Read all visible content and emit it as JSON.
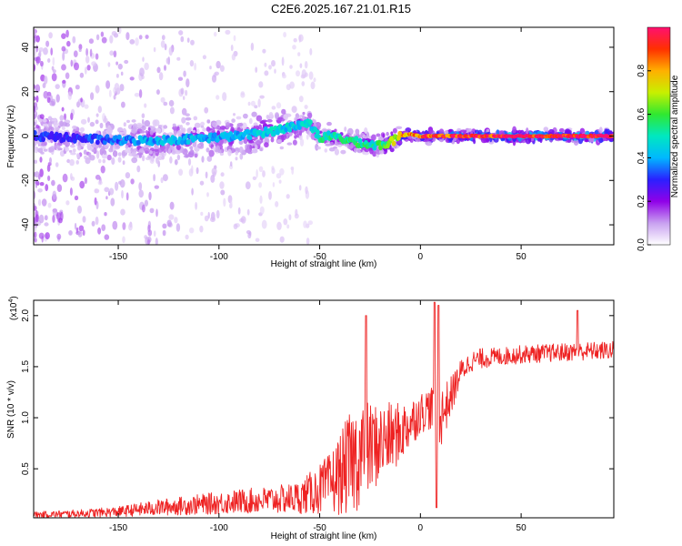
{
  "page": {
    "title": "C2E6.2025.167.21.01.R15"
  },
  "chart_data": [
    {
      "type": "heatmap",
      "id": "spectrogram",
      "xlabel": "Height of straight line (km)",
      "ylabel": "Frequency (Hz)",
      "xlim": [
        -192,
        96
      ],
      "ylim": [
        -49,
        49
      ],
      "x_ticks": [
        -150,
        -100,
        -50,
        0,
        50
      ],
      "x_tick_labels": [
        "-150",
        "-100",
        "-50",
        "0",
        "50"
      ],
      "y_ticks": [
        -40,
        -20,
        0,
        20,
        40
      ],
      "y_tick_labels": [
        "-40",
        "-20",
        "0",
        "20",
        "40"
      ],
      "ridge": {
        "x": [
          -192,
          -170,
          -150,
          -130,
          -110,
          -90,
          -75,
          -60,
          -55,
          -50,
          -45,
          -40,
          -35,
          -30,
          -25,
          -20,
          -15,
          -10,
          -5,
          0,
          5,
          10,
          20,
          30,
          40,
          50,
          60,
          70,
          80,
          96
        ],
        "freq": [
          0,
          -1,
          -2,
          -2,
          -1,
          0,
          2,
          5,
          6,
          -1,
          0,
          -1,
          -2,
          -3,
          -4,
          -4,
          -3,
          0,
          1,
          0,
          0,
          0,
          0,
          0,
          0,
          0,
          0,
          0,
          0,
          0
        ],
        "amplitude": [
          0.3,
          0.3,
          0.35,
          0.4,
          0.4,
          0.4,
          0.45,
          0.45,
          0.45,
          0.5,
          0.5,
          0.5,
          0.55,
          0.55,
          0.5,
          0.55,
          0.6,
          0.75,
          0.8,
          0.85,
          0.9,
          0.9,
          0.92,
          0.94,
          0.95,
          0.96,
          0.97,
          0.98,
          0.98,
          0.98
        ]
      },
      "colorbar": {
        "label": "Normalized spectral amplitude",
        "range": [
          0,
          1
        ],
        "ticks": [
          0.0,
          0.2,
          0.4,
          0.6,
          0.8
        ],
        "tick_labels": [
          "0.0",
          "0.2",
          "0.4",
          "0.6",
          "0.8"
        ],
        "colormap": [
          "#ffffff",
          "#c8a0f0",
          "#9000e8",
          "#2a20ff",
          "#00b8ff",
          "#00e8c0",
          "#30e830",
          "#c8f000",
          "#ffb000",
          "#ff3000",
          "#ff1070"
        ]
      }
    },
    {
      "type": "line",
      "id": "snr",
      "xlabel": "Height of straight line (km)",
      "ylabel": "SNR (10 * v/v)",
      "scale_label": "(x10",
      "scale_exponent": "4",
      "scale_close": ")",
      "xlim": [
        -192,
        96
      ],
      "ylim": [
        0.02,
        2.15
      ],
      "x_ticks": [
        -150,
        -100,
        -50,
        0,
        50
      ],
      "x_tick_labels": [
        "-150",
        "-100",
        "-50",
        "0",
        "50"
      ],
      "y_ticks": [
        0.5,
        1.0,
        1.5,
        2.0
      ],
      "y_tick_labels": [
        "0.5",
        "1.0",
        "1.5",
        "2.0"
      ],
      "color": "#ee2222",
      "envelope": {
        "x": [
          -192,
          -170,
          -150,
          -130,
          -110,
          -90,
          -70,
          -60,
          -50,
          -45,
          -40,
          -35,
          -30,
          -25,
          -20,
          -15,
          -10,
          -5,
          0,
          5,
          10,
          15,
          20,
          25,
          30,
          40,
          50,
          60,
          70,
          80,
          96
        ],
        "mean": [
          0.05,
          0.06,
          0.08,
          0.12,
          0.15,
          0.18,
          0.2,
          0.22,
          0.3,
          0.35,
          0.45,
          0.55,
          0.65,
          0.7,
          0.75,
          0.8,
          0.85,
          0.95,
          1.05,
          1.1,
          1.0,
          1.2,
          1.45,
          1.55,
          1.58,
          1.6,
          1.62,
          1.63,
          1.64,
          1.65,
          1.66
        ],
        "spread": [
          0.03,
          0.04,
          0.05,
          0.08,
          0.1,
          0.12,
          0.14,
          0.16,
          0.25,
          0.3,
          0.4,
          0.5,
          0.55,
          0.45,
          0.4,
          0.35,
          0.3,
          0.25,
          0.2,
          0.22,
          0.3,
          0.2,
          0.12,
          0.1,
          0.1,
          0.09,
          0.09,
          0.09,
          0.09,
          0.09,
          0.09
        ]
      },
      "spikes": [
        {
          "x": -27,
          "y": 2.0
        },
        {
          "x": 7,
          "y": 2.13
        },
        {
          "x": 9,
          "y": 2.1
        },
        {
          "x": 8,
          "y": 0.12
        },
        {
          "x": 78,
          "y": 2.05
        }
      ]
    }
  ]
}
